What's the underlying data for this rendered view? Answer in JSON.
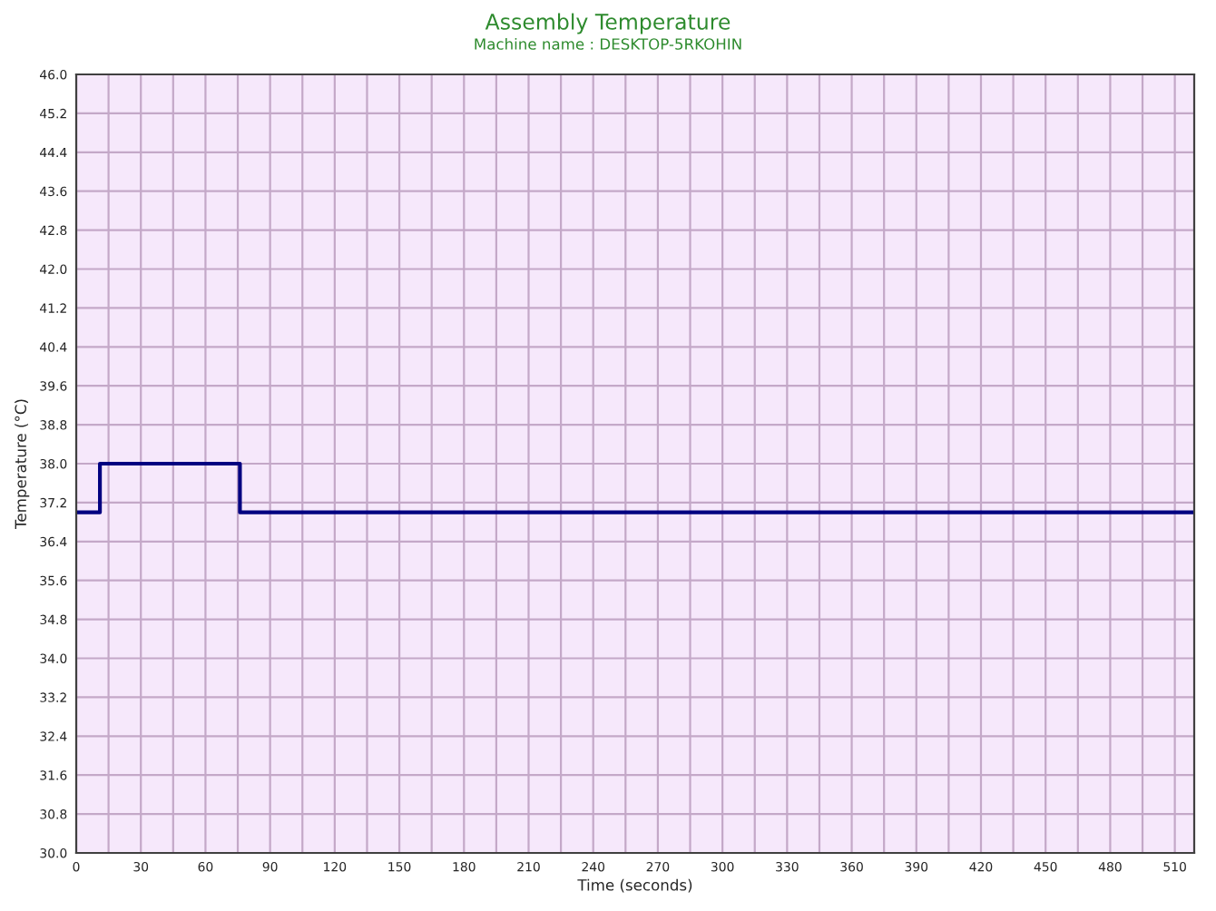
{
  "chart_data": {
    "type": "step",
    "title": "Assembly Temperature",
    "subtitle": "Machine name : DESKTOP-5RKOHIN",
    "xlabel": "Time (seconds)",
    "ylabel": "Temperature (°C)",
    "x": [
      0,
      11,
      76,
      519
    ],
    "series": [
      {
        "color": "#000080",
        "values": [
          37.0,
          38.0,
          37.0,
          37.0
        ]
      }
    ],
    "xlim": [
      0,
      519
    ],
    "xticks": [
      0,
      {
        "value": 15,
        "label": null
      },
      30,
      {
        "value": 45,
        "label": null
      },
      60,
      {
        "value": 75,
        "label": null
      },
      90,
      {
        "value": 105,
        "label": null
      },
      120,
      {
        "value": 135,
        "label": null
      },
      150,
      {
        "value": 165,
        "label": null
      },
      180,
      {
        "value": 195,
        "label": null
      },
      210,
      {
        "value": 225,
        "label": null
      },
      240,
      {
        "value": 255,
        "label": null
      },
      270,
      {
        "value": 285,
        "label": null
      },
      300,
      {
        "value": 315,
        "label": null
      },
      330,
      {
        "value": 345,
        "label": null
      },
      360,
      {
        "value": 375,
        "label": null
      },
      390,
      {
        "value": 405,
        "label": null
      },
      420,
      {
        "value": 435,
        "label": null
      },
      450,
      {
        "value": 465,
        "label": null
      },
      480,
      {
        "value": 495,
        "label": null
      },
      510
    ],
    "ylim": [
      30,
      46
    ],
    "yticks": [
      {
        "value": 30,
        "label": "30.0"
      },
      {
        "value": 30.8,
        "label": "30.8"
      },
      {
        "value": 31.6,
        "label": "31.6"
      },
      {
        "value": 32.4,
        "label": "32.4"
      },
      {
        "value": 33.2,
        "label": "33.2"
      },
      {
        "value": 34,
        "label": "34.0"
      },
      {
        "value": 34.8,
        "label": "34.8"
      },
      {
        "value": 35.6,
        "label": "35.6"
      },
      {
        "value": 36.4,
        "label": "36.4"
      },
      {
        "value": 37.2,
        "label": "37.2"
      },
      {
        "value": 38,
        "label": "38.0"
      },
      {
        "value": 38.8,
        "label": "38.8"
      },
      {
        "value": 39.6,
        "label": "39.6"
      },
      {
        "value": 40.4,
        "label": "40.4"
      },
      {
        "value": 41.2,
        "label": "41.2"
      },
      {
        "value": 42,
        "label": "42.0"
      },
      {
        "value": 42.8,
        "label": "42.8"
      },
      {
        "value": 43.6,
        "label": "43.6"
      },
      {
        "value": 44.4,
        "label": "44.4"
      },
      {
        "value": 45.2,
        "label": "45.2"
      },
      {
        "value": 46,
        "label": "46.0"
      }
    ],
    "grid": true,
    "legend": false
  }
}
